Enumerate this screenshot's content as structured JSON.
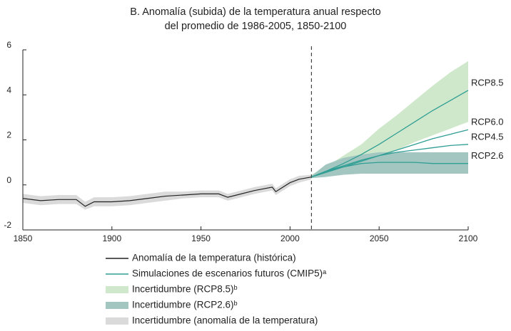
{
  "chart_data": {
    "type": "line",
    "title": [
      "B. Anomalía (subida) de la temperatura anual respecto",
      "del promedio de 1986-2005, 1850-2100"
    ],
    "xlim": [
      1850,
      2100
    ],
    "xticks": [
      1850,
      1900,
      1950,
      2000,
      2050,
      2100
    ],
    "ylim": [
      -2,
      6
    ],
    "yticks": [
      -2,
      0,
      2,
      4,
      6
    ],
    "divider_x": 2012,
    "series": [
      {
        "name": "Anomalía de la temperatura (histórica)",
        "color": "#222222",
        "x": [
          1850,
          1860,
          1870,
          1880,
          1885,
          1890,
          1900,
          1910,
          1920,
          1930,
          1940,
          1950,
          1960,
          1965,
          1970,
          1980,
          1990,
          1992,
          2000,
          2005,
          2012
        ],
        "values": [
          -0.6,
          -0.7,
          -0.65,
          -0.65,
          -0.95,
          -0.75,
          -0.75,
          -0.7,
          -0.6,
          -0.5,
          -0.45,
          -0.4,
          -0.4,
          -0.55,
          -0.45,
          -0.25,
          -0.1,
          -0.3,
          0.1,
          0.25,
          0.35
        ]
      }
    ],
    "scenarios": {
      "name": "Simulaciones de escenarios futuros (CMIP5)ᵃ",
      "color": "#2f9e94",
      "x": [
        2012,
        2020,
        2030,
        2040,
        2050,
        2060,
        2070,
        2080,
        2090,
        2100
      ],
      "lines": [
        {
          "label": "RCP8.5",
          "values": [
            0.35,
            0.6,
            0.95,
            1.35,
            1.8,
            2.3,
            2.8,
            3.3,
            3.75,
            4.2
          ]
        },
        {
          "label": "RCP6.0",
          "values": [
            0.35,
            0.55,
            0.8,
            1.05,
            1.3,
            1.55,
            1.8,
            2.05,
            2.25,
            2.45
          ]
        },
        {
          "label": "RCP4.5",
          "values": [
            0.35,
            0.6,
            0.85,
            1.1,
            1.3,
            1.45,
            1.55,
            1.65,
            1.75,
            1.8
          ]
        },
        {
          "label": "RCP2.6",
          "values": [
            0.35,
            0.6,
            0.8,
            0.95,
            1.0,
            1.0,
            1.0,
            0.95,
            0.95,
            0.95
          ]
        }
      ]
    },
    "bands": [
      {
        "name": "Incertidumbre (RCP8.5)ᵇ",
        "color": "#cfe8cb",
        "x": [
          2012,
          2020,
          2030,
          2040,
          2050,
          2060,
          2070,
          2080,
          2090,
          2100
        ],
        "lower": [
          0.3,
          0.4,
          0.6,
          0.9,
          1.2,
          1.55,
          1.9,
          2.2,
          2.5,
          2.8
        ],
        "upper": [
          0.45,
          0.8,
          1.3,
          1.8,
          2.5,
          3.1,
          3.75,
          4.4,
          5.0,
          5.5
        ]
      },
      {
        "name": "Incertidumbre (RCP2.6)ᵇ",
        "color": "#a3c7c0",
        "x": [
          2012,
          2020,
          2030,
          2040,
          2050,
          2060,
          2070,
          2080,
          2090,
          2100
        ],
        "lower": [
          0.3,
          0.35,
          0.45,
          0.5,
          0.5,
          0.5,
          0.5,
          0.5,
          0.5,
          0.5
        ],
        "upper": [
          0.4,
          0.9,
          1.2,
          1.35,
          1.45,
          1.45,
          1.45,
          1.45,
          1.45,
          1.45
        ]
      },
      {
        "name": "Incertidumbre (anomalía de la temperatura)",
        "color": "#dadada",
        "x": [
          1850,
          1860,
          1870,
          1880,
          1885,
          1890,
          1900,
          1910,
          1920,
          1930,
          1940,
          1950,
          1960,
          1965,
          1970,
          1980,
          1990,
          1992,
          2000,
          2005,
          2012
        ],
        "lower": [
          -0.8,
          -0.9,
          -0.85,
          -0.85,
          -1.1,
          -0.95,
          -0.95,
          -0.9,
          -0.8,
          -0.7,
          -0.6,
          -0.55,
          -0.55,
          -0.7,
          -0.6,
          -0.4,
          -0.25,
          -0.45,
          -0.05,
          0.1,
          0.25
        ],
        "upper": [
          -0.4,
          -0.5,
          -0.45,
          -0.45,
          -0.75,
          -0.55,
          -0.55,
          -0.5,
          -0.4,
          -0.3,
          -0.3,
          -0.25,
          -0.25,
          -0.4,
          -0.3,
          -0.1,
          0.05,
          -0.15,
          0.25,
          0.4,
          0.45
        ]
      }
    ]
  }
}
